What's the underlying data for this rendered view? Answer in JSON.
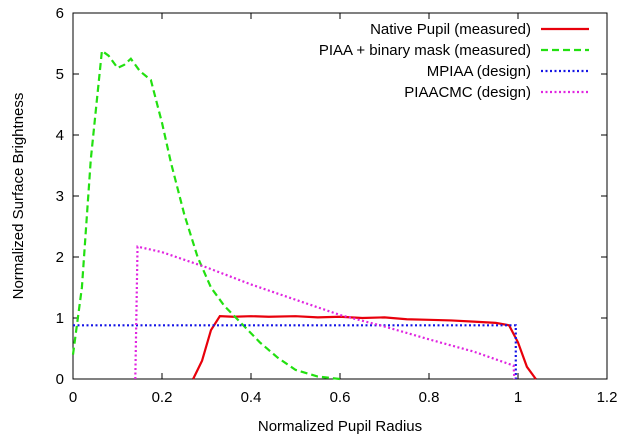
{
  "chart_data": {
    "type": "line",
    "title": "",
    "xlabel": "Normalized Pupil Radius",
    "ylabel": "Normalized Surface Brightness",
    "xlim": [
      0,
      1.2
    ],
    "ylim": [
      0,
      6
    ],
    "xticks": [
      "0",
      "0.2",
      "0.4",
      "0.6",
      "0.8",
      "1",
      "1.2"
    ],
    "yticks": [
      "0",
      "1",
      "2",
      "3",
      "4",
      "5",
      "6"
    ],
    "grid": false,
    "legend_position": "top-right",
    "series": [
      {
        "name": "Native Pupil (measured)",
        "color": "#e8000b",
        "dash": "solid",
        "points": [
          [
            0.27,
            0.0
          ],
          [
            0.29,
            0.3
          ],
          [
            0.31,
            0.8
          ],
          [
            0.33,
            1.03
          ],
          [
            0.36,
            1.02
          ],
          [
            0.4,
            1.03
          ],
          [
            0.44,
            1.02
          ],
          [
            0.5,
            1.03
          ],
          [
            0.55,
            1.01
          ],
          [
            0.6,
            1.02
          ],
          [
            0.65,
            1.0
          ],
          [
            0.7,
            1.01
          ],
          [
            0.75,
            0.98
          ],
          [
            0.8,
            0.97
          ],
          [
            0.85,
            0.96
          ],
          [
            0.9,
            0.94
          ],
          [
            0.95,
            0.92
          ],
          [
            0.98,
            0.88
          ],
          [
            1.0,
            0.6
          ],
          [
            1.02,
            0.2
          ],
          [
            1.04,
            0.0
          ]
        ]
      },
      {
        "name": "PIAA + binary mask (measured)",
        "color": "#22e010",
        "dash": "dashed",
        "points": [
          [
            0.0,
            0.4
          ],
          [
            0.02,
            1.5
          ],
          [
            0.04,
            3.6
          ],
          [
            0.065,
            5.38
          ],
          [
            0.08,
            5.3
          ],
          [
            0.1,
            5.1
          ],
          [
            0.115,
            5.15
          ],
          [
            0.13,
            5.25
          ],
          [
            0.15,
            5.05
          ],
          [
            0.175,
            4.9
          ],
          [
            0.2,
            4.2
          ],
          [
            0.22,
            3.55
          ],
          [
            0.25,
            2.7
          ],
          [
            0.28,
            2.0
          ],
          [
            0.31,
            1.5
          ],
          [
            0.34,
            1.2
          ],
          [
            0.38,
            0.9
          ],
          [
            0.42,
            0.6
          ],
          [
            0.46,
            0.35
          ],
          [
            0.5,
            0.15
          ],
          [
            0.55,
            0.04
          ],
          [
            0.6,
            0.0
          ]
        ]
      },
      {
        "name": "MPIAA (design)",
        "color": "#1414e6",
        "dash": "dotted",
        "points": [
          [
            0.0,
            0.88
          ],
          [
            0.995,
            0.88
          ],
          [
            0.995,
            0.0
          ]
        ]
      },
      {
        "name": "PIAACMC (design)",
        "color": "#e024e0",
        "dash": "dotted",
        "points": [
          [
            0.14,
            0.0
          ],
          [
            0.145,
            2.17
          ],
          [
            0.2,
            2.08
          ],
          [
            0.3,
            1.83
          ],
          [
            0.4,
            1.55
          ],
          [
            0.5,
            1.3
          ],
          [
            0.6,
            1.05
          ],
          [
            0.7,
            0.86
          ],
          [
            0.8,
            0.65
          ],
          [
            0.9,
            0.45
          ],
          [
            0.99,
            0.22
          ],
          [
            0.992,
            0.0
          ]
        ]
      }
    ]
  }
}
